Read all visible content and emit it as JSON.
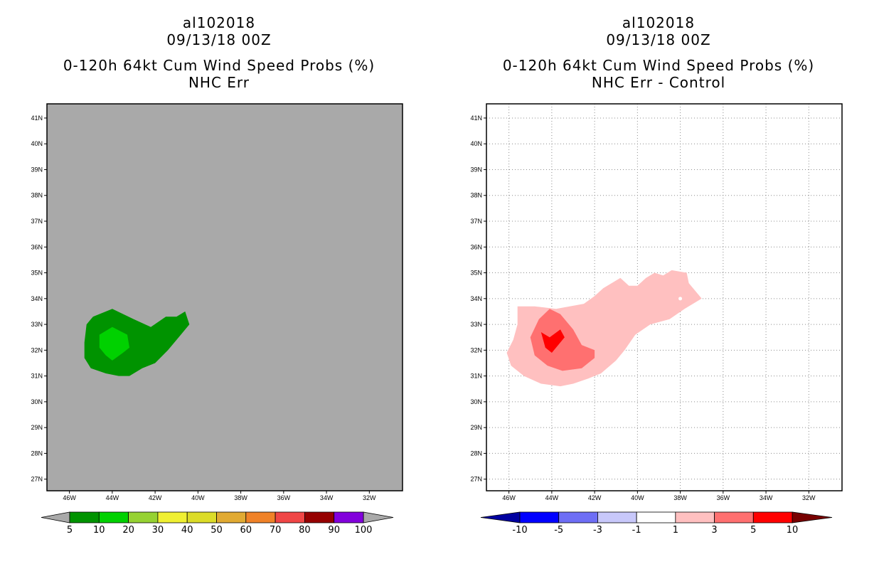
{
  "panels": [
    {
      "id": "left",
      "storm_id": "al102018",
      "date": "09/13/18 00Z",
      "product": "0-120h 64kt Cum Wind Speed Probs (%)",
      "subtitle": "NHC Err",
      "background_color": "#a9a9a9",
      "contours": [
        {
          "level": "5-10",
          "color": "#009300",
          "polygon": [
            [
              -45.2,
              33.0
            ],
            [
              -44.9,
              33.3
            ],
            [
              -44.0,
              33.6
            ],
            [
              -43.0,
              33.2
            ],
            [
              -42.2,
              32.9
            ],
            [
              -41.5,
              33.3
            ],
            [
              -41.0,
              33.3
            ],
            [
              -40.6,
              33.5
            ],
            [
              -40.4,
              33.0
            ],
            [
              -40.8,
              32.6
            ],
            [
              -41.4,
              32.0
            ],
            [
              -42.0,
              31.5
            ],
            [
              -42.6,
              31.3
            ],
            [
              -43.2,
              31.0
            ],
            [
              -43.7,
              31.0
            ],
            [
              -44.3,
              31.1
            ],
            [
              -45.0,
              31.3
            ],
            [
              -45.3,
              31.7
            ],
            [
              -45.3,
              32.3
            ],
            [
              -45.2,
              33.0
            ]
          ]
        },
        {
          "level": "10-20",
          "color": "#00d100",
          "polygon": [
            [
              -44.6,
              32.6
            ],
            [
              -44.0,
              32.9
            ],
            [
              -43.3,
              32.6
            ],
            [
              -43.2,
              32.1
            ],
            [
              -43.5,
              31.9
            ],
            [
              -44.0,
              31.6
            ],
            [
              -44.3,
              31.8
            ],
            [
              -44.6,
              32.1
            ],
            [
              -44.6,
              32.6
            ]
          ]
        }
      ],
      "grid": false
    },
    {
      "id": "right",
      "storm_id": "al102018",
      "date": "09/13/18 00Z",
      "product": "0-120h 64kt Cum Wind Speed Probs (%)",
      "subtitle": "NHC Err - Control",
      "background_color": "#ffffff",
      "contours": [
        {
          "level": "1-3",
          "color": "#ffc0c0",
          "polygon": [
            [
              -45.6,
              33.7
            ],
            [
              -44.8,
              33.7
            ],
            [
              -43.8,
              33.6
            ],
            [
              -42.5,
              33.8
            ],
            [
              -42.0,
              34.1
            ],
            [
              -41.6,
              34.4
            ],
            [
              -40.8,
              34.8
            ],
            [
              -40.4,
              34.5
            ],
            [
              -40.0,
              34.5
            ],
            [
              -39.6,
              34.8
            ],
            [
              -39.2,
              35.0
            ],
            [
              -38.8,
              34.9
            ],
            [
              -38.4,
              35.1
            ],
            [
              -37.7,
              35.0
            ],
            [
              -37.6,
              34.6
            ],
            [
              -37.0,
              34.0
            ],
            [
              -37.8,
              33.6
            ],
            [
              -38.5,
              33.2
            ],
            [
              -39.4,
              33.0
            ],
            [
              -40.1,
              32.6
            ],
            [
              -40.6,
              32.0
            ],
            [
              -41.0,
              31.6
            ],
            [
              -41.7,
              31.1
            ],
            [
              -42.3,
              30.9
            ],
            [
              -43.0,
              30.7
            ],
            [
              -43.6,
              30.6
            ],
            [
              -44.5,
              30.7
            ],
            [
              -45.3,
              31.0
            ],
            [
              -45.9,
              31.4
            ],
            [
              -46.1,
              31.9
            ],
            [
              -45.8,
              32.4
            ],
            [
              -45.6,
              33.0
            ],
            [
              -45.6,
              33.7
            ]
          ]
        },
        {
          "level": "3-5",
          "color": "#ff7070",
          "polygon": [
            [
              -44.6,
              33.2
            ],
            [
              -44.1,
              33.6
            ],
            [
              -43.6,
              33.4
            ],
            [
              -43.0,
              32.8
            ],
            [
              -42.6,
              32.2
            ],
            [
              -42.0,
              32.0
            ],
            [
              -42.0,
              31.7
            ],
            [
              -42.6,
              31.3
            ],
            [
              -43.5,
              31.2
            ],
            [
              -44.2,
              31.4
            ],
            [
              -44.8,
              31.8
            ],
            [
              -45.0,
              32.5
            ],
            [
              -44.6,
              33.2
            ]
          ]
        },
        {
          "level": "5-10",
          "color": "#ff0000",
          "polygon": [
            [
              -44.5,
              32.7
            ],
            [
              -44.1,
              32.5
            ],
            [
              -43.6,
              32.8
            ],
            [
              -43.4,
              32.5
            ],
            [
              -43.8,
              32.1
            ],
            [
              -44.0,
              31.9
            ],
            [
              -44.3,
              32.1
            ],
            [
              -44.5,
              32.7
            ]
          ]
        }
      ],
      "grid": true
    }
  ],
  "map": {
    "lon_min": -47.05,
    "lon_max": -30.45,
    "lat_min": 26.55,
    "lat_max": 41.55,
    "lon_ticks": [
      -46,
      -44,
      -42,
      -40,
      -38,
      -36,
      -34,
      -32
    ],
    "lon_labels": [
      "46W",
      "44W",
      "42W",
      "40W",
      "38W",
      "36W",
      "34W",
      "32W"
    ],
    "lat_ticks": [
      27,
      28,
      29,
      30,
      31,
      32,
      33,
      34,
      35,
      36,
      37,
      38,
      39,
      40,
      41
    ],
    "lat_labels": [
      "27N",
      "28N",
      "29N",
      "30N",
      "31N",
      "32N",
      "33N",
      "34N",
      "35N",
      "36N",
      "37N",
      "38N",
      "39N",
      "40N",
      "41N"
    ]
  },
  "colorbars": [
    {
      "id": "left",
      "under_color": "#a9a9a9",
      "over_color": "#a9a9a9",
      "colors": [
        "#009300",
        "#00d100",
        "#96d232",
        "#f0f032",
        "#dcdc28",
        "#e1aa32",
        "#f08228",
        "#f04646",
        "#960000",
        "#8200dc"
      ],
      "labels": [
        "5",
        "10",
        "20",
        "30",
        "40",
        "50",
        "60",
        "70",
        "80",
        "90",
        "100"
      ]
    },
    {
      "id": "right",
      "under_color": "#0000a0",
      "over_color": "#780000",
      "colors": [
        "#0000ff",
        "#6e6ef5",
        "#c8c8fa",
        "#ffffff",
        "#ffc0c0",
        "#ff7070",
        "#ff0000"
      ],
      "labels": [
        "-10",
        "-5",
        "-3",
        "-1",
        "1",
        "3",
        "5",
        "10"
      ]
    }
  ]
}
